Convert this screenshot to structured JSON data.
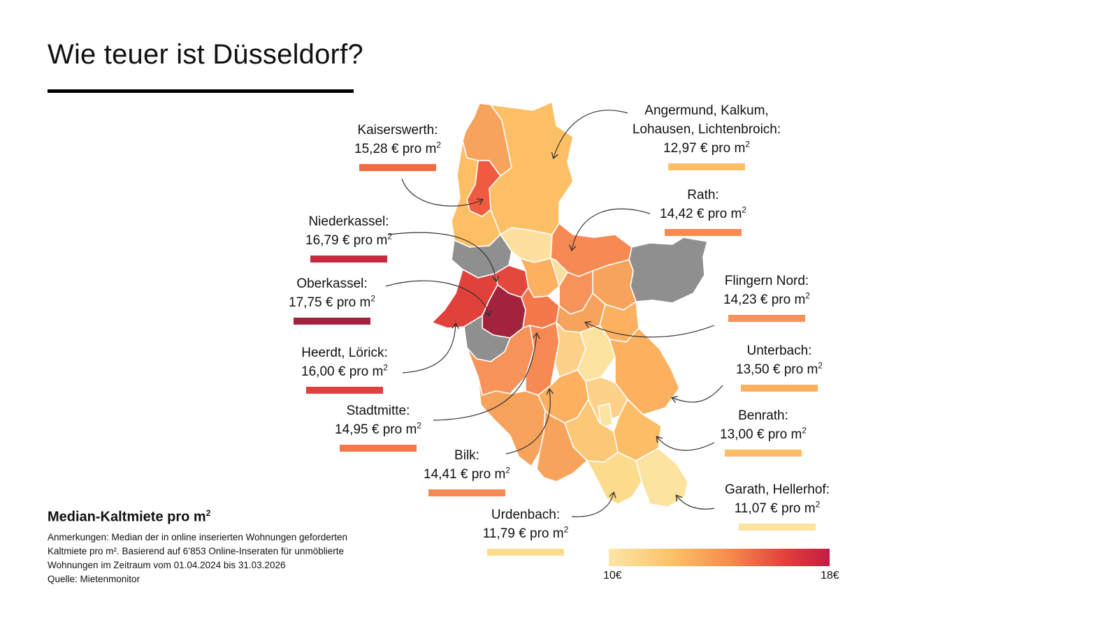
{
  "title": "Wie teuer ist Düsseldorf?",
  "unit_suffix": "€ pro m",
  "unit_exp": "2",
  "districts": [
    {
      "name": "Kaiserswerth:",
      "value": "15,28",
      "color": "#f26a3e"
    },
    {
      "name": "Niederkassel:",
      "value": "16,79",
      "color": "#c62b40"
    },
    {
      "name": "Oberkassel:",
      "value": "17,75",
      "color": "#a3233f"
    },
    {
      "name": "Heerdt, Lörick:",
      "value": "16,00",
      "color": "#df4040"
    },
    {
      "name": "Stadtmitte:",
      "value": "14,95",
      "color": "#f5784a"
    },
    {
      "name": "Bilk:",
      "value": "14,41",
      "color": "#f78a52"
    },
    {
      "name": "Urdenbach:",
      "value": "11,79",
      "color": "#fcdc8c"
    },
    {
      "name": "Angermund, Kalkum, Lohausen, Lichtenbroich:",
      "line1": "Angermund, Kalkum,",
      "line2": "Lohausen, Lichtenbroich:",
      "value": "12,97",
      "color": "#fdbf65"
    },
    {
      "name": "Rath:",
      "value": "14,42",
      "color": "#f78a52"
    },
    {
      "name": "Flingern Nord:",
      "value": "14,23",
      "color": "#f7925a"
    },
    {
      "name": "Unterbach:",
      "value": "13,50",
      "color": "#fcb060"
    },
    {
      "name": "Benrath:",
      "value": "13,00",
      "color": "#fdbc66"
    },
    {
      "name": "Garath, Hellerhof:",
      "value": "11,07",
      "color": "#fde3a0"
    }
  ],
  "legend": {
    "title": "Median-Kaltmiete pro m",
    "title_exp": "2",
    "notes_line1": "Anmerkungen: Median der in online inserierten Wohnungen geforderten",
    "notes_line2": "Kaltmiete pro m². Basierend auf 6’853 Online-Inseraten für unmöblierte",
    "notes_line3": "Wohnungen im Zeitraum vom 01.04.2024 bis 31.03.2026",
    "notes_line4": "Quelle: Mietenmonitor",
    "scale_min": "10€",
    "scale_max": "18€",
    "scale_min_value": 10,
    "scale_max_value": 18
  },
  "colors": {
    "no_data": "#8f8f8f",
    "border": "#ffffff",
    "arrow": "#333333"
  }
}
